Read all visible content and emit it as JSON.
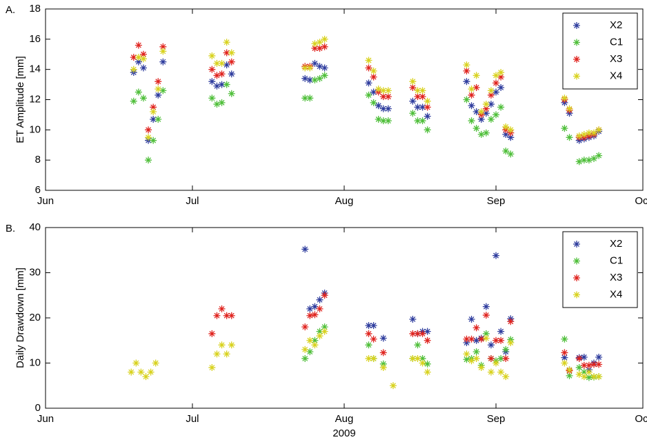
{
  "chart_data": [
    {
      "type": "scatter",
      "panel_label": "A.",
      "ylabel": "ET Amplitude [mm]",
      "xlim": [
        0,
        122
      ],
      "xticks": [
        {
          "value": 0,
          "label": "Jun"
        },
        {
          "value": 30,
          "label": "Jul"
        },
        {
          "value": 61,
          "label": "Aug"
        },
        {
          "value": 92,
          "label": "Sep"
        },
        {
          "value": 122,
          "label": "Oct"
        }
      ],
      "ylim": [
        6,
        18
      ],
      "yticks": [
        6,
        8,
        10,
        12,
        14,
        16,
        18
      ],
      "grid": false,
      "legend": "upper right",
      "series": [
        {
          "name": "X2",
          "color": "#2f3d9e",
          "x": [
            18,
            19,
            20,
            21,
            22,
            23,
            24,
            34,
            35,
            36,
            37,
            38,
            53,
            54,
            55,
            56,
            57,
            66,
            67,
            68,
            69,
            70,
            75,
            76,
            77,
            78,
            86,
            87,
            88,
            89,
            90,
            91,
            92,
            93,
            94,
            95,
            106,
            107,
            109,
            110,
            111,
            112,
            113
          ],
          "values": [
            13.8,
            14.5,
            14.1,
            9.3,
            10.7,
            12.3,
            14.5,
            13.2,
            12.9,
            13.0,
            14.3,
            13.7,
            13.4,
            13.3,
            14.4,
            14.2,
            14.1,
            13.1,
            12.5,
            11.6,
            11.4,
            11.4,
            11.9,
            11.5,
            11.5,
            10.9,
            13.2,
            11.6,
            11.2,
            10.7,
            11.1,
            11.7,
            12.5,
            12.8,
            9.7,
            9.5,
            11.8,
            11.1,
            9.3,
            9.4,
            9.5,
            9.6,
            9.9
          ]
        },
        {
          "name": "C1",
          "color": "#4fbf3a",
          "x": [
            18,
            19,
            20,
            21,
            22,
            23,
            24,
            34,
            35,
            36,
            37,
            38,
            53,
            54,
            55,
            56,
            57,
            66,
            67,
            68,
            69,
            70,
            75,
            76,
            77,
            78,
            86,
            87,
            88,
            89,
            90,
            91,
            92,
            93,
            94,
            95,
            106,
            107,
            109,
            110,
            111,
            112,
            113
          ],
          "values": [
            11.9,
            12.5,
            12.1,
            8.0,
            9.3,
            10.7,
            12.6,
            12.1,
            11.7,
            11.8,
            13.0,
            12.4,
            12.1,
            12.1,
            13.3,
            13.4,
            13.6,
            12.3,
            11.8,
            10.7,
            10.6,
            10.6,
            11.1,
            10.6,
            10.6,
            10.0,
            12.0,
            10.6,
            10.1,
            9.7,
            9.8,
            10.7,
            11.0,
            11.5,
            8.6,
            8.4,
            10.1,
            9.5,
            7.9,
            8.0,
            8.0,
            8.1,
            8.3
          ]
        },
        {
          "name": "X3",
          "color": "#e0241f",
          "x": [
            18,
            19,
            20,
            21,
            22,
            23,
            24,
            34,
            35,
            36,
            37,
            38,
            53,
            54,
            55,
            56,
            57,
            66,
            67,
            68,
            69,
            70,
            75,
            76,
            77,
            78,
            86,
            87,
            88,
            89,
            90,
            91,
            92,
            93,
            94,
            95,
            106,
            107,
            109,
            110,
            111,
            112,
            113
          ],
          "values": [
            14.8,
            15.6,
            15.0,
            10.0,
            11.5,
            13.2,
            15.5,
            14.0,
            13.6,
            13.7,
            15.1,
            14.5,
            14.2,
            14.2,
            15.4,
            15.4,
            15.5,
            14.1,
            13.5,
            12.5,
            12.2,
            12.2,
            12.8,
            12.2,
            12.2,
            11.5,
            13.9,
            12.3,
            12.8,
            11.0,
            11.4,
            12.3,
            13.1,
            13.5,
            10.0,
            9.8,
            12.0,
            11.3,
            9.5,
            9.5,
            9.6,
            9.7,
            10.0
          ]
        },
        {
          "name": "X4",
          "color": "#d8d21e",
          "x": [
            18,
            19,
            20,
            21,
            22,
            23,
            24,
            34,
            35,
            36,
            37,
            38,
            53,
            54,
            55,
            56,
            57,
            66,
            67,
            68,
            69,
            70,
            75,
            76,
            77,
            78,
            86,
            87,
            88,
            89,
            90,
            91,
            92,
            93,
            94,
            95,
            106,
            107,
            109,
            110,
            111,
            112,
            113
          ],
          "values": [
            14.0,
            14.8,
            14.7,
            9.5,
            11.2,
            12.7,
            15.2,
            14.9,
            14.4,
            14.4,
            15.8,
            15.1,
            14.1,
            14.1,
            15.7,
            15.8,
            16.0,
            14.6,
            13.9,
            12.7,
            12.6,
            12.6,
            13.2,
            12.6,
            12.6,
            11.9,
            14.3,
            12.7,
            13.6,
            11.2,
            11.7,
            12.6,
            13.6,
            13.8,
            10.2,
            10.0,
            12.1,
            11.4,
            9.6,
            9.7,
            9.8,
            9.8,
            10.0
          ]
        }
      ]
    },
    {
      "type": "scatter",
      "panel_label": "B.",
      "ylabel": "Daily Drawdown [mm]",
      "xlabel": "2009",
      "xlim": [
        0,
        122
      ],
      "xticks": [
        {
          "value": 0,
          "label": "Jun"
        },
        {
          "value": 30,
          "label": "Jul"
        },
        {
          "value": 61,
          "label": "Aug"
        },
        {
          "value": 92,
          "label": "Sep"
        },
        {
          "value": 122,
          "label": "Oct"
        }
      ],
      "ylim": [
        0,
        40
      ],
      "yticks": [
        0,
        10,
        20,
        30,
        40
      ],
      "grid": false,
      "legend": "upper right",
      "series": [
        {
          "name": "X2",
          "color": "#2f3d9e",
          "x": [
            53,
            54,
            55,
            56,
            57,
            66,
            67,
            69,
            75,
            76,
            77,
            78,
            86,
            87,
            88,
            89,
            90,
            91,
            92,
            93,
            94,
            95,
            106,
            107,
            109,
            110,
            111,
            112,
            113
          ],
          "values": [
            35.2,
            22,
            22.5,
            24,
            25.5,
            18.3,
            18.3,
            15.5,
            19.7,
            16.5,
            17,
            17,
            14.5,
            19.7,
            15,
            15.5,
            22.5,
            14,
            33.8,
            17,
            12.5,
            19.8,
            11.2,
            8.5,
            11.2,
            11.3,
            8.5,
            10,
            11.3
          ]
        },
        {
          "name": "C1",
          "color": "#4fbf3a",
          "x": [
            53,
            54,
            55,
            56,
            57,
            66,
            67,
            69,
            75,
            76,
            77,
            78,
            86,
            87,
            88,
            89,
            90,
            91,
            92,
            93,
            94,
            95,
            106,
            107,
            109,
            110,
            111,
            112,
            113
          ],
          "values": [
            11,
            12.5,
            15,
            17,
            18,
            14,
            11,
            9.8,
            11,
            14,
            11,
            9.8,
            10.8,
            11,
            12.5,
            9.5,
            16.5,
            11,
            10.5,
            11,
            13,
            15.2,
            15.3,
            7.2,
            9,
            8,
            6.8,
            6.9,
            7
          ]
        },
        {
          "name": "X3",
          "color": "#e0241f",
          "x": [
            34,
            35,
            36,
            37,
            38,
            53,
            54,
            55,
            56,
            57,
            66,
            67,
            69,
            75,
            76,
            77,
            78,
            86,
            87,
            88,
            89,
            90,
            91,
            92,
            93,
            94,
            95,
            106,
            107,
            109,
            110,
            111,
            112,
            113
          ],
          "values": [
            16.5,
            20.5,
            22,
            20.5,
            20.5,
            18,
            20.5,
            20.7,
            22,
            25,
            16.5,
            15.3,
            12.3,
            16.5,
            16.5,
            16.5,
            15,
            15.3,
            15.3,
            17.8,
            15.3,
            20.6,
            11,
            15,
            15,
            11,
            19.2,
            12.3,
            8.3,
            11,
            9.5,
            9.5,
            9.7,
            9.7
          ]
        },
        {
          "name": "X4",
          "color": "#d8d21e",
          "x": [
            17.5,
            18.5,
            19.5,
            20.5,
            21.5,
            22.5,
            34,
            35,
            36,
            37,
            38,
            53,
            54,
            55,
            56,
            57,
            66,
            67,
            69,
            71,
            75,
            76,
            77,
            78,
            86,
            87,
            88,
            89,
            90,
            91,
            92,
            93,
            94,
            95,
            106,
            107,
            109,
            110,
            111,
            112,
            113
          ],
          "values": [
            8,
            10,
            8,
            7,
            8,
            10,
            9,
            12,
            14,
            12,
            14,
            13,
            15,
            14,
            16,
            17,
            11,
            11,
            9,
            5,
            11,
            11,
            10,
            8,
            12,
            10.5,
            11,
            9,
            15.5,
            8,
            10,
            8,
            7,
            14.5,
            10,
            8.5,
            7.5,
            7,
            8,
            7,
            7
          ]
        }
      ]
    }
  ]
}
